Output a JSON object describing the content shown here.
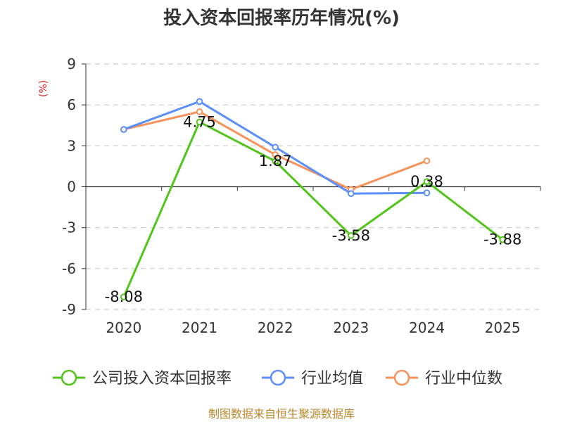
{
  "chart_data": {
    "type": "line",
    "title": "投入资本回报率历年情况(%)",
    "ylabel": "(%)",
    "xlabel": "",
    "categories": [
      "2020",
      "2021",
      "2022",
      "2023",
      "2024",
      "2025"
    ],
    "ylim": [
      -9,
      9
    ],
    "yticks": [
      "9",
      "6",
      "3",
      "0",
      "-3",
      "-6",
      "-9"
    ],
    "ytick_values": [
      9,
      6,
      3,
      0,
      -3,
      -6,
      -9
    ],
    "grid": "horizontal dashed",
    "legend_position": "bottom",
    "series": [
      {
        "name": "公司投入资本回报率",
        "color": "#52c41a",
        "values": [
          -8.08,
          4.75,
          1.87,
          -3.58,
          0.38,
          -3.88
        ],
        "labels": [
          "-8.08",
          "4.75",
          "1.87",
          "-3.58",
          "0.38",
          "-3.88"
        ]
      },
      {
        "name": "行业均值",
        "color": "#5b8ff9",
        "values": [
          4.2,
          6.25,
          2.9,
          -0.5,
          -0.45,
          null
        ]
      },
      {
        "name": "行业中位数",
        "color": "#f6935c",
        "values": [
          4.2,
          5.5,
          2.35,
          -0.2,
          1.9,
          null
        ]
      }
    ]
  },
  "colors": {
    "unit_label": "#e02020",
    "source": "#b8862b",
    "axis": "#333333",
    "grid": "#cccccc"
  },
  "source": "制图数据来自恒生聚源数据库"
}
